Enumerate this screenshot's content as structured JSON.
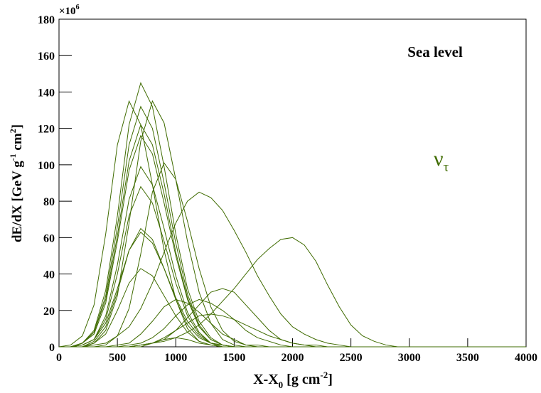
{
  "chart_data": {
    "type": "line",
    "annotation": "Sea level",
    "particle": [
      "ν",
      "τ"
    ],
    "y_multiplier": [
      "×10",
      "6"
    ],
    "xlabel": [
      "X-X",
      "0",
      " [g cm",
      "-2",
      "]"
    ],
    "ylabel": [
      "dE/dX [GeV g",
      "-1",
      " cm",
      "2",
      "]"
    ],
    "color": "#3f6b00",
    "xlim": [
      0,
      4000
    ],
    "xticks": [
      0,
      500,
      1000,
      1500,
      2000,
      2500,
      3000,
      3500,
      4000
    ],
    "ylim": [
      0,
      180
    ],
    "yticks": [
      0,
      20,
      40,
      60,
      80,
      100,
      120,
      140,
      160,
      180
    ],
    "x": [
      0,
      100,
      200,
      300,
      400,
      500,
      600,
      700,
      800,
      900,
      1000,
      1100,
      1200,
      1300,
      1400,
      1500,
      1600,
      1700,
      1800,
      1900,
      2000,
      2100,
      2200,
      2300,
      2400,
      2500,
      2600,
      2700,
      2800,
      2900,
      3000,
      3100,
      3200,
      3300,
      3400,
      3500,
      3600,
      3700,
      3800,
      3900,
      4000
    ],
    "series": [
      {
        "values": [
          0,
          0,
          2,
          9,
          31,
          72,
          122,
          145,
          132,
          99,
          62,
          32,
          14,
          5,
          1,
          0,
          0,
          0,
          0,
          0,
          0,
          0,
          0,
          0,
          0,
          0,
          0,
          0,
          0,
          0,
          0,
          0,
          0,
          0,
          0,
          0,
          0,
          0,
          0,
          0,
          0
        ]
      },
      {
        "values": [
          0,
          1,
          6,
          23,
          62,
          111,
          135,
          122,
          89,
          53,
          26,
          10,
          3,
          1,
          0,
          0,
          0,
          0,
          0,
          0,
          0,
          0,
          0,
          0,
          0,
          0,
          0,
          0,
          0,
          0,
          0,
          0,
          0,
          0,
          0,
          0,
          0,
          0,
          0,
          0,
          0
        ]
      },
      {
        "values": [
          0,
          0,
          0,
          2,
          9,
          28,
          68,
          113,
          135,
          123,
          92,
          58,
          30,
          13,
          4,
          1,
          0,
          0,
          0,
          0,
          0,
          0,
          0,
          0,
          0,
          0,
          0,
          0,
          0,
          0,
          0,
          0,
          0,
          0,
          0,
          0,
          0,
          0,
          0,
          0,
          0
        ]
      },
      {
        "values": [
          0,
          0,
          2,
          8,
          28,
          66,
          111,
          132,
          120,
          90,
          57,
          29,
          12,
          4,
          1,
          0,
          0,
          0,
          0,
          0,
          0,
          0,
          0,
          0,
          0,
          0,
          0,
          0,
          0,
          0,
          0,
          0,
          0,
          0,
          0,
          0,
          0,
          0,
          0,
          0,
          0
        ]
      },
      {
        "values": [
          0,
          0,
          2,
          8,
          26,
          61,
          102,
          122,
          111,
          84,
          52,
          27,
          11,
          4,
          1,
          0,
          0,
          0,
          0,
          0,
          0,
          0,
          0,
          0,
          0,
          0,
          0,
          0,
          0,
          0,
          0,
          0,
          0,
          0,
          0,
          0,
          0,
          0,
          0,
          0,
          0
        ]
      },
      {
        "values": [
          0,
          0,
          2,
          7,
          24,
          58,
          97,
          116,
          106,
          79,
          50,
          26,
          11,
          4,
          1,
          0,
          0,
          0,
          0,
          0,
          0,
          0,
          0,
          0,
          0,
          0,
          0,
          0,
          0,
          0,
          0,
          0,
          0,
          0,
          0,
          0,
          0,
          0,
          0,
          0,
          0
        ]
      },
      {
        "values": [
          0,
          0,
          0,
          0,
          1,
          6,
          21,
          51,
          85,
          101,
          92,
          69,
          43,
          22,
          9,
          3,
          1,
          0,
          0,
          0,
          0,
          0,
          0,
          0,
          0,
          0,
          0,
          0,
          0,
          0,
          0,
          0,
          0,
          0,
          0,
          0,
          0,
          0,
          0,
          0,
          0
        ]
      },
      {
        "values": [
          0,
          0,
          1,
          4,
          17,
          45,
          81,
          99,
          89,
          65,
          39,
          19,
          8,
          2,
          1,
          0,
          0,
          0,
          0,
          0,
          0,
          0,
          0,
          0,
          0,
          0,
          0,
          0,
          0,
          0,
          0,
          0,
          0,
          0,
          0,
          0,
          0,
          0,
          0,
          0,
          0
        ]
      },
      {
        "values": [
          0,
          0,
          1,
          4,
          15,
          40,
          72,
          88,
          79,
          58,
          35,
          17,
          7,
          2,
          1,
          0,
          0,
          0,
          0,
          0,
          0,
          0,
          0,
          0,
          0,
          0,
          0,
          0,
          0,
          0,
          0,
          0,
          0,
          0,
          0,
          0,
          0,
          0,
          0,
          0,
          0
        ]
      },
      {
        "values": [
          0,
          0,
          0,
          1,
          2,
          6,
          11,
          21,
          35,
          52,
          68,
          80,
          85,
          82,
          75,
          64,
          52,
          39,
          28,
          18,
          11,
          7,
          4,
          2,
          1,
          0,
          0,
          0,
          0,
          0,
          0,
          0,
          0,
          0,
          0,
          0,
          0,
          0,
          0,
          0,
          0
        ]
      },
      {
        "values": [
          0,
          0,
          0,
          3,
          11,
          30,
          53,
          65,
          59,
          43,
          26,
          12,
          5,
          2,
          0,
          0,
          0,
          0,
          0,
          0,
          0,
          0,
          0,
          0,
          0,
          0,
          0,
          0,
          0,
          0,
          0,
          0,
          0,
          0,
          0,
          0,
          0,
          0,
          0,
          0,
          0
        ]
      },
      {
        "values": [
          0,
          0,
          1,
          4,
          13,
          32,
          53,
          63,
          57,
          43,
          27,
          14,
          6,
          2,
          1,
          0,
          0,
          0,
          0,
          0,
          0,
          0,
          0,
          0,
          0,
          0,
          0,
          0,
          0,
          0,
          0,
          0,
          0,
          0,
          0,
          0,
          0,
          0,
          0,
          0,
          0
        ]
      },
      {
        "values": [
          0,
          0,
          0,
          2,
          7,
          20,
          35,
          43,
          39,
          28,
          17,
          8,
          3,
          1,
          0,
          0,
          0,
          0,
          0,
          0,
          0,
          0,
          0,
          0,
          0,
          0,
          0,
          0,
          0,
          0,
          0,
          0,
          0,
          0,
          0,
          0,
          0,
          0,
          0,
          0,
          0
        ]
      },
      {
        "values": [
          0,
          0,
          0,
          0,
          0,
          0,
          0,
          1,
          2,
          3,
          5,
          8,
          12,
          18,
          25,
          32,
          40,
          48,
          54,
          59,
          60,
          56,
          47,
          34,
          22,
          12,
          6,
          3,
          1,
          0,
          0,
          0,
          0,
          0,
          0,
          0,
          0,
          0,
          0,
          0,
          0
        ]
      },
      {
        "values": [
          0,
          0,
          0,
          0,
          0,
          0,
          0,
          1,
          2,
          4,
          9,
          16,
          23,
          30,
          32,
          30,
          23,
          16,
          9,
          4,
          2,
          1,
          0,
          0,
          0,
          0,
          0,
          0,
          0,
          0,
          0,
          0,
          0,
          0,
          0,
          0,
          0,
          0,
          0,
          0,
          0
        ]
      },
      {
        "values": [
          0,
          0,
          0,
          0,
          0,
          0,
          1,
          2,
          5,
          10,
          17,
          23,
          26,
          24,
          20,
          15,
          9,
          5,
          3,
          1,
          0,
          0,
          0,
          0,
          0,
          0,
          0,
          0,
          0,
          0,
          0,
          0,
          0,
          0,
          0,
          0,
          0,
          0,
          0,
          0,
          0
        ]
      },
      {
        "values": [
          0,
          0,
          0,
          0,
          0,
          1,
          2,
          7,
          14,
          22,
          26,
          24,
          19,
          13,
          7,
          4,
          1,
          1,
          0,
          0,
          0,
          0,
          0,
          0,
          0,
          0,
          0,
          0,
          0,
          0,
          0,
          0,
          0,
          0,
          0,
          0,
          0,
          0,
          0,
          0,
          0
        ]
      },
      {
        "values": [
          0,
          0,
          0,
          0,
          0,
          0,
          0,
          1,
          2,
          5,
          9,
          13,
          17,
          18,
          17,
          15,
          12,
          9,
          6,
          4,
          2,
          1,
          1,
          0,
          0,
          0,
          0,
          0,
          0,
          0,
          0,
          0,
          0,
          0,
          0,
          0,
          0,
          0,
          0,
          0,
          0
        ]
      },
      {
        "values": [
          0,
          0,
          0,
          0,
          0,
          0,
          0,
          0,
          2,
          4,
          5,
          4,
          2,
          1,
          0,
          0,
          0,
          0,
          0,
          0,
          0,
          0,
          0,
          0,
          0,
          0,
          0,
          0,
          0,
          0,
          0,
          0,
          0,
          0,
          0,
          0,
          0,
          0,
          0,
          0,
          0
        ]
      }
    ]
  }
}
